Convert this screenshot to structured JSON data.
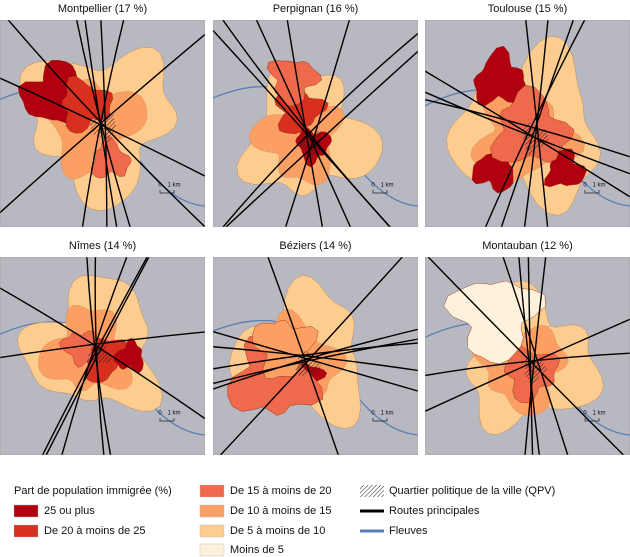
{
  "panels": [
    {
      "title": "Montpellier (17 %)",
      "scale": [
        "0",
        "1 km"
      ]
    },
    {
      "title": "Perpignan (16 %)",
      "scale": [
        "0",
        "1 km"
      ]
    },
    {
      "title": "Toulouse (15 %)",
      "scale": [
        "0",
        "1 km"
      ]
    },
    {
      "title": "Nîmes (14 %)",
      "scale": [
        "0",
        "1 km"
      ]
    },
    {
      "title": "Béziers (14 %)",
      "scale": [
        "0",
        "1 km"
      ]
    },
    {
      "title": "Montauban (12 %)",
      "scale": [
        "0",
        "1 km"
      ]
    }
  ],
  "legend": {
    "title": "Part de population immigrée (%)",
    "classes": [
      {
        "label": "25 ou plus",
        "color": "#b1000f"
      },
      {
        "label": "De 20 à moins de 25",
        "color": "#d7301f"
      },
      {
        "label": "De 15 à moins de 20",
        "color": "#ef6a4c"
      },
      {
        "label": "De 10 à moins de 15",
        "color": "#fb9f62"
      },
      {
        "label": "De 5 à moins de 10",
        "color": "#fdcd90"
      },
      {
        "label": "Moins de 5",
        "color": "#fef1dc"
      }
    ],
    "qpv": "Quartier politique de la ville (QPV)",
    "roads": {
      "label": "Routes principales",
      "color": "#000000"
    },
    "rivers": {
      "label": "Fleuves",
      "color": "#5b7fb5"
    }
  }
}
